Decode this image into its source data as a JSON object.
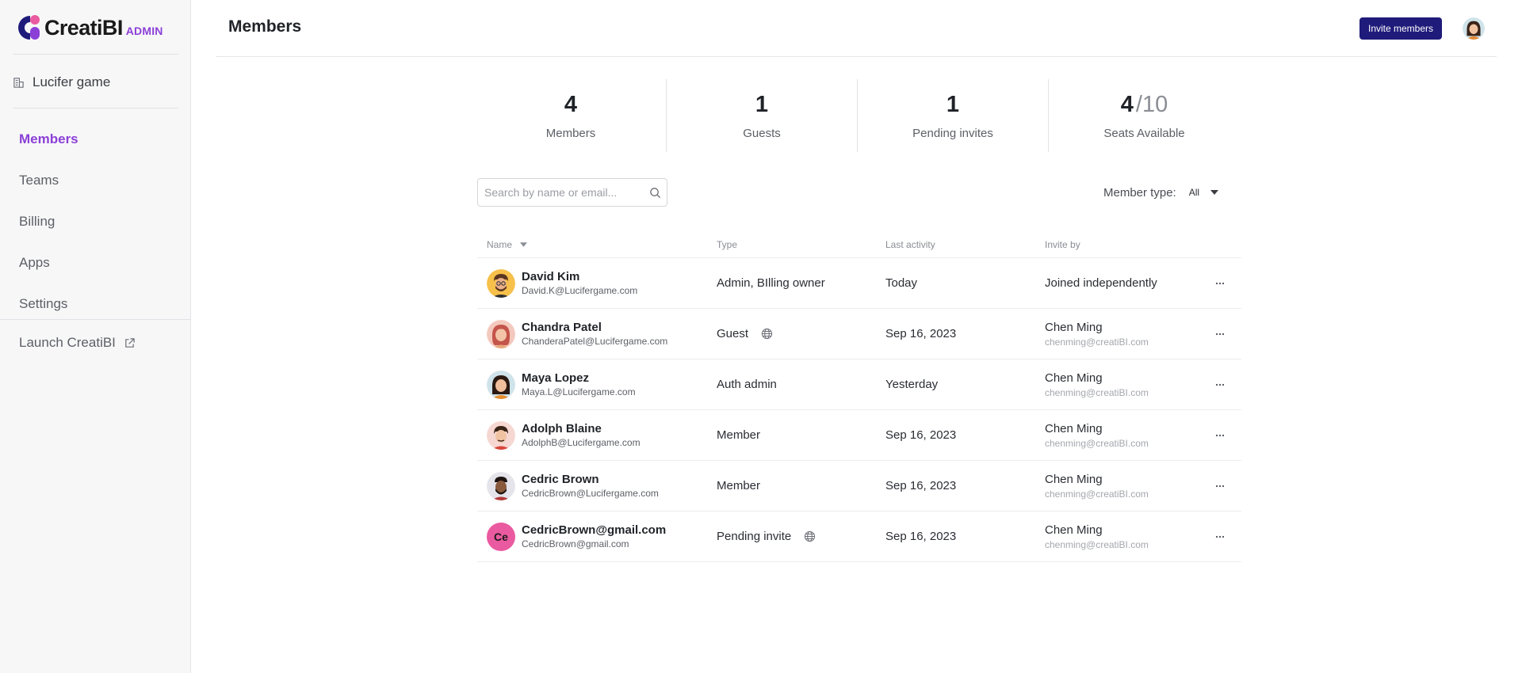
{
  "brand": {
    "name": "CreatiBI",
    "tag": "ADMIN"
  },
  "sidebar": {
    "workspace": "Lucifer game",
    "items": [
      {
        "label": "Members",
        "active": true
      },
      {
        "label": "Teams"
      },
      {
        "label": "Billing"
      },
      {
        "label": "Apps"
      },
      {
        "label": "Settings"
      }
    ],
    "launch_label": "Launch CreatiBI"
  },
  "header": {
    "title": "Members",
    "invite_label": "Invite members"
  },
  "stats": [
    {
      "value": "4",
      "label": "Members"
    },
    {
      "value": "1",
      "label": "Guests"
    },
    {
      "value": "1",
      "label": "Pending invites"
    },
    {
      "value": "4",
      "total": "/10",
      "label": "Seats Available"
    }
  ],
  "search": {
    "placeholder": "Search by name or email..."
  },
  "filter": {
    "label": "Member type:",
    "value": "All"
  },
  "table": {
    "headers": {
      "name": "Name",
      "type": "Type",
      "activity": "Last activity",
      "invite": "Invite by"
    },
    "rows": [
      {
        "name": "David Kim",
        "email": "David.K@Lucifergame.com",
        "type": "Admin, BIlling owner",
        "activity": "Today",
        "invite": "Joined independently",
        "invite_email": ""
      },
      {
        "name": "Chandra Patel",
        "email": "ChanderaPatel@Lucifergame.com",
        "type": "Guest",
        "activity": "Sep 16, 2023",
        "invite": "Chen Ming",
        "invite_email": "chenming@creatiBI.com"
      },
      {
        "name": "Maya Lopez",
        "email": "Maya.L@Lucifergame.com",
        "type": "Auth admin",
        "activity": "Yesterday",
        "invite": "Chen Ming",
        "invite_email": "chenming@creatiBI.com"
      },
      {
        "name": "Adolph Blaine",
        "email": "AdolphB@Lucifergame.com",
        "type": "Member",
        "activity": "Sep 16, 2023",
        "invite": "Chen Ming",
        "invite_email": "chenming@creatiBI.com"
      },
      {
        "name": "Cedric Brown",
        "email": "CedricBrown@Lucifergame.com",
        "type": "Member",
        "activity": "Sep 16, 2023",
        "invite": "Chen Ming",
        "invite_email": "chenming@creatiBI.com"
      },
      {
        "name": "CedricBrown@gmail.com",
        "email": "CedricBrown@gmail.com",
        "initials": "Ce",
        "type": "Pending invite",
        "activity": "Sep 16, 2023",
        "invite": "Chen Ming",
        "invite_email": "chenming@creatiBI.com"
      }
    ]
  },
  "colors": {
    "accent": "#8b3fd6",
    "primary_button": "#1f1b7a",
    "pending_avatar": "#ea5aa0"
  }
}
